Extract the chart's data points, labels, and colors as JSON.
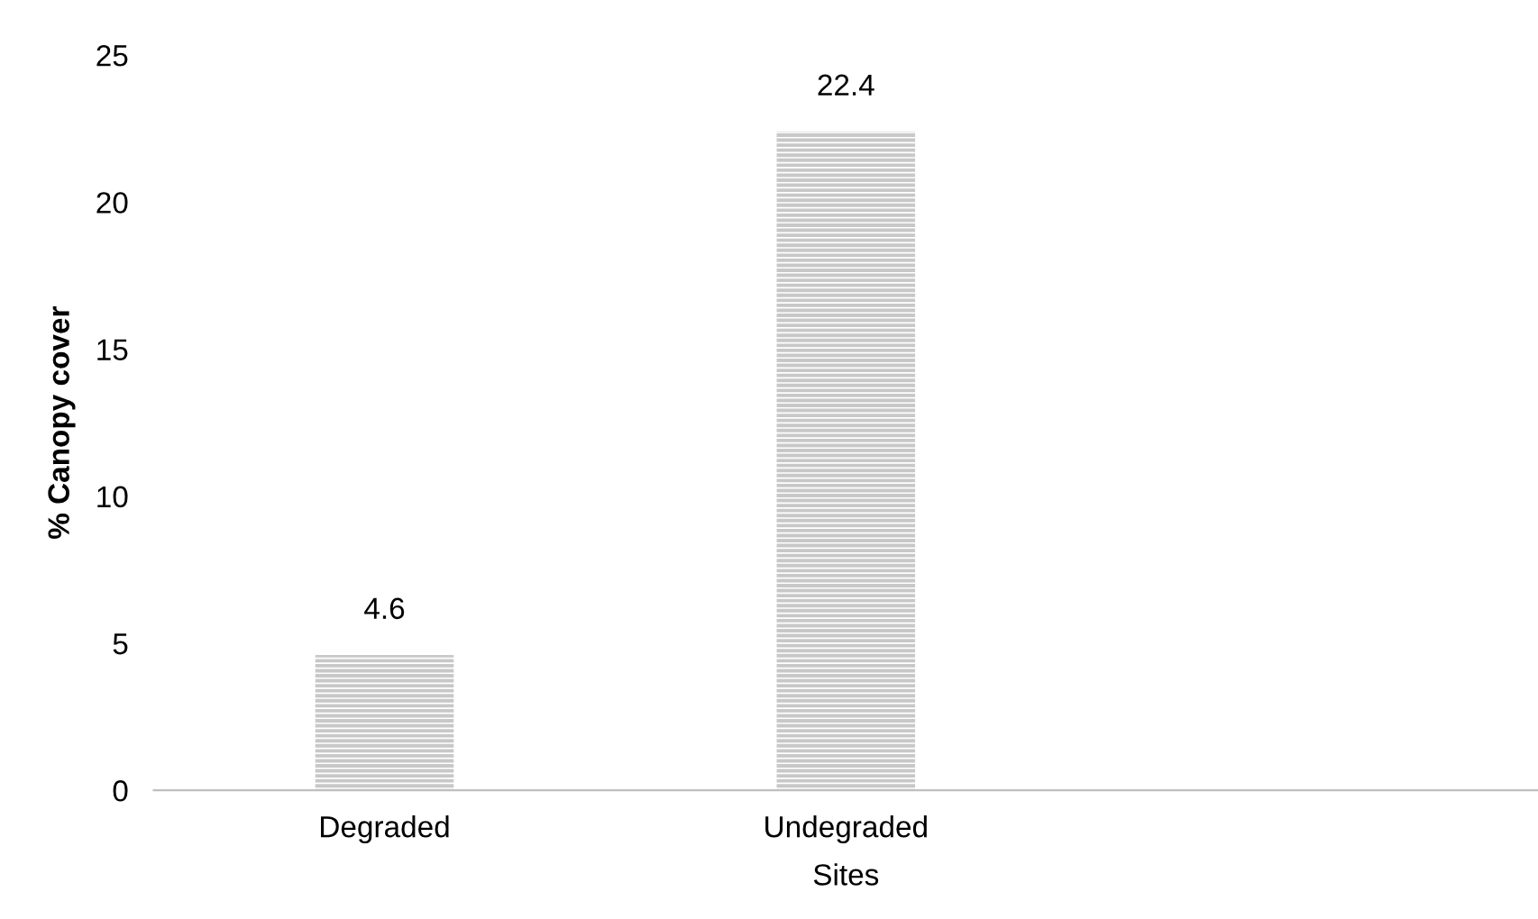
{
  "chart_data": {
    "type": "bar",
    "xlabel": "Sites",
    "ylabel": "% Canopy cover",
    "categories": [
      "Degraded",
      "Undegraded",
      null
    ],
    "values": [
      4.6,
      22.4,
      null
    ],
    "color": "#c8c8c8",
    "ylim": [
      0,
      25
    ],
    "yticks": [
      0,
      5,
      10,
      15,
      20,
      25
    ],
    "data_labels": true,
    "grid": false,
    "legend": false
  }
}
